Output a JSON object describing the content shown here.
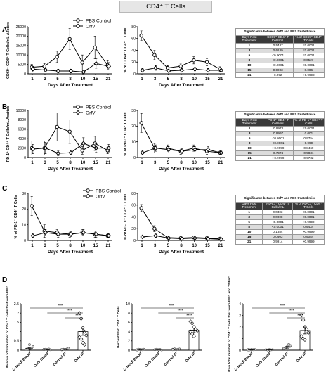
{
  "figure_title": "CD4⁺ T Cells",
  "panel_letters": [
    "A",
    "B",
    "C",
    "D"
  ],
  "legend": [
    "PBS Control",
    "OrfV"
  ],
  "chart_data": [
    {
      "type": "line",
      "panel": "A",
      "chart": "A1",
      "xlabel": "Days After Treatment",
      "ylabel": "CD69⁺ CD8⁺ T Cells/mL Ascites",
      "x": [
        "1",
        "3",
        "5",
        "8",
        "10",
        "15",
        "21"
      ],
      "ylim": [
        0,
        25000
      ],
      "yticks": [
        "0",
        "5000",
        "10000",
        "15000",
        "20000",
        "25000"
      ],
      "legend_position": "top-center",
      "series": [
        {
          "name": "PBS Control",
          "marker": "circle",
          "values": [
            3500,
            4000,
            9000,
            18500,
            6000,
            14000,
            4500
          ],
          "errors": [
            1500,
            1500,
            3000,
            5500,
            4000,
            6000,
            2500
          ]
        },
        {
          "name": "OrfV",
          "marker": "diamond",
          "values": [
            2500,
            2000,
            1500,
            1500,
            1000,
            5500,
            4000
          ],
          "errors": [
            1500,
            1000,
            1000,
            1000,
            800,
            2500,
            2000
          ]
        }
      ]
    },
    {
      "type": "line",
      "panel": "A",
      "chart": "A2",
      "xlabel": "Days After Treatment",
      "ylabel": "% of CD69⁺ CD4⁺ T Cells",
      "x": [
        "1",
        "3",
        "5",
        "8",
        "10",
        "15",
        "21"
      ],
      "ylim": [
        0,
        80
      ],
      "yticks": [
        "0",
        "20",
        "40",
        "60",
        "80"
      ],
      "series": [
        {
          "name": "PBS Control",
          "marker": "circle",
          "values": [
            65,
            32,
            10,
            13,
            23,
            20,
            8
          ],
          "errors": [
            8,
            8,
            4,
            5,
            6,
            6,
            4
          ]
        },
        {
          "name": "OrfV",
          "marker": "diamond",
          "values": [
            6,
            10,
            5,
            6,
            8,
            6,
            6
          ],
          "errors": [
            3,
            4,
            2,
            3,
            3,
            3,
            2
          ]
        }
      ]
    },
    {
      "type": "line",
      "panel": "B",
      "chart": "B1",
      "xlabel": "Days After Treatment",
      "ylabel": "PD-1⁺ CD4⁺ T Cells/mL Ascites",
      "x": [
        "1",
        "3",
        "5",
        "8",
        "10",
        "15",
        "21"
      ],
      "ylim": [
        0,
        10000
      ],
      "yticks": [
        "0",
        "2000",
        "4000",
        "6000",
        "8000",
        "10000"
      ],
      "legend_position": "top-center",
      "series": [
        {
          "name": "PBS Control",
          "marker": "circle",
          "values": [
            2000,
            2000,
            6500,
            5500,
            1500,
            3000,
            1500
          ],
          "errors": [
            1500,
            1500,
            3000,
            2500,
            800,
            1500,
            700
          ]
        },
        {
          "name": "OrfV",
          "marker": "diamond",
          "values": [
            1800,
            2000,
            900,
            1000,
            3000,
            2000,
            2000
          ],
          "errors": [
            1000,
            1200,
            500,
            500,
            1200,
            900,
            800
          ]
        }
      ]
    },
    {
      "type": "line",
      "panel": "B",
      "chart": "B2",
      "xlabel": "Days After Treatment",
      "ylabel": "% of PD-1⁺ CD4⁺ T Cells",
      "x": [
        "1",
        "3",
        "5",
        "8",
        "10",
        "15",
        "21"
      ],
      "ylim": [
        0,
        30
      ],
      "yticks": [
        "0",
        "10",
        "20",
        "30"
      ],
      "series": [
        {
          "name": "PBS Control",
          "marker": "circle",
          "values": [
            22,
            6,
            6,
            4,
            6,
            4,
            3
          ],
          "errors": [
            6,
            3,
            2,
            2,
            2,
            2,
            1.5
          ]
        },
        {
          "name": "OrfV",
          "marker": "diamond",
          "values": [
            3,
            6,
            5,
            4,
            5,
            5,
            3
          ],
          "errors": [
            1.5,
            2,
            2,
            1.5,
            2,
            2,
            1.5
          ]
        }
      ]
    },
    {
      "type": "line",
      "panel": "C",
      "chart": "C1",
      "xlabel": "Days After Treatment",
      "ylabel": "% of PD-1⁺ CD4⁺ T Cells",
      "x": [
        "1",
        "3",
        "5",
        "8",
        "10",
        "15",
        "21"
      ],
      "ylim": [
        0,
        30
      ],
      "yticks": [
        "0",
        "10",
        "20",
        "30"
      ],
      "legend_position": "top-right",
      "series": [
        {
          "name": "PBS Control",
          "marker": "circle",
          "values": [
            22,
            6,
            5,
            4,
            5,
            4,
            3
          ],
          "errors": [
            6,
            4,
            2,
            2,
            2,
            2,
            1.5
          ]
        },
        {
          "name": "OrfV",
          "marker": "diamond",
          "values": [
            3,
            5,
            4,
            4,
            5,
            4,
            3
          ],
          "errors": [
            1.5,
            2,
            2,
            1.5,
            2,
            2,
            1.5
          ]
        }
      ]
    },
    {
      "type": "line",
      "panel": "C",
      "chart": "C2",
      "xlabel": "Days After Treatment",
      "ylabel": "% of PD-L1⁺ CD4⁺ T Cells",
      "x": [
        "1",
        "3",
        "5",
        "8",
        "10",
        "15",
        "21"
      ],
      "ylim": [
        0,
        80
      ],
      "yticks": [
        "0",
        "20",
        "40",
        "60",
        "80"
      ],
      "series": [
        {
          "name": "PBS Control",
          "marker": "circle",
          "values": [
            55,
            20,
            5,
            4,
            5,
            4,
            3
          ],
          "errors": [
            6,
            5,
            2,
            2,
            2,
            2,
            1.5
          ]
        },
        {
          "name": "OrfV",
          "marker": "diamond",
          "values": [
            6,
            8,
            4,
            3,
            4,
            3,
            2
          ],
          "errors": [
            2,
            3,
            2,
            1.5,
            2,
            1.5,
            1
          ]
        }
      ]
    },
    {
      "type": "scatter",
      "panel": "D",
      "chart": "D1",
      "ylabel": "Relative total number of CD4⁺ T cells that were IFN⁺",
      "categories": [
        "Control Blood",
        "OrfV Blood",
        "Control IP",
        "OrfV IP"
      ],
      "ylim": [
        0,
        2.5
      ],
      "yticks": [
        "0",
        "0.5",
        "1",
        "1.5",
        "2",
        "2.5"
      ],
      "significance": [
        "****",
        "****",
        "****"
      ],
      "groups": [
        {
          "points": [
            0.05,
            0.1,
            0.08,
            0.12,
            0.2,
            0.05,
            0.03,
            0.3
          ],
          "mean": 0.08,
          "sem": 0.04
        },
        {
          "points": [
            0.03,
            0.05,
            0.04,
            0.06,
            0.02,
            0.05
          ],
          "mean": 0.04,
          "sem": 0.02
        },
        {
          "points": [
            0.02,
            0.05,
            0.03,
            0.06,
            0.1,
            0.04
          ],
          "mean": 0.05,
          "sem": 0.02
        },
        {
          "points": [
            2.0,
            1.7,
            1.2,
            1.0,
            0.8,
            0.7,
            0.6,
            0.4,
            0.3
          ],
          "mean": 1.0,
          "sem": 0.2
        }
      ]
    },
    {
      "type": "scatter",
      "panel": "D",
      "chart": "D2",
      "ylabel": "Percent IFN⁺ CD4⁺ T Cells",
      "categories": [
        "Control Blood",
        "OrfV Blood",
        "Control IP",
        "OrfV IP"
      ],
      "ylim": [
        0,
        10
      ],
      "yticks": [
        "0",
        "2",
        "4",
        "6",
        "8",
        "10"
      ],
      "significance": [
        "****",
        "****",
        "****"
      ],
      "groups": [
        {
          "points": [
            0.1,
            0.2,
            0.15,
            0.1,
            0.2,
            0.05
          ],
          "mean": 0.13,
          "sem": 0.04
        },
        {
          "points": [
            0.1,
            0.2,
            0.1,
            0.15,
            0.05,
            0.1
          ],
          "mean": 0.12,
          "sem": 0.03
        },
        {
          "points": [
            0.2,
            0.3,
            0.1,
            0.2,
            0.25,
            0.1
          ],
          "mean": 0.2,
          "sem": 0.04
        },
        {
          "points": [
            6.2,
            5.8,
            5.0,
            4.5,
            4.2,
            4.0,
            3.5,
            3.0
          ],
          "mean": 4.3,
          "sem": 0.5
        }
      ]
    },
    {
      "type": "scatter",
      "panel": "D",
      "chart": "D3",
      "ylabel": "Relative total number of CD4⁺ T cells that were IFN⁺ and TNFα⁺",
      "categories": [
        "Control Blood",
        "OrfV Blood",
        "Control IP",
        "OrfV IP"
      ],
      "ylim": [
        0,
        4
      ],
      "yticks": [
        "0",
        "1",
        "2",
        "3",
        "4"
      ],
      "significance": [
        "****",
        "****",
        "****"
      ],
      "groups": [
        {
          "points": [
            0.05,
            0.03,
            0.06,
            0.04,
            0.05,
            0.02
          ],
          "mean": 0.04,
          "sem": 0.01
        },
        {
          "points": [
            0.04,
            0.02,
            0.05,
            0.03,
            0.04
          ],
          "mean": 0.04,
          "sem": 0.01
        },
        {
          "points": [
            0.1,
            0.2,
            0.3,
            0.5,
            0.4,
            0.15
          ],
          "mean": 0.25,
          "sem": 0.08
        },
        {
          "points": [
            3.0,
            2.6,
            2.0,
            1.8,
            1.5,
            1.2,
            1.0,
            0.9
          ],
          "mean": 1.7,
          "sem": 0.3
        }
      ]
    }
  ],
  "tables": [
    {
      "title": "Significance between OrfV and PBS treated mice",
      "headers": [
        "Days Post Treatment",
        "CD69⁺ CD4⁺ T Cells/mL",
        "% of CD69⁺ CD4⁺ T Cells"
      ],
      "rows": [
        [
          "1",
          "0.5487",
          "<0.0001"
        ],
        [
          "3",
          "0.6189",
          "<0.0001"
        ],
        [
          "5",
          "<0.0001",
          "<0.0001"
        ],
        [
          "8",
          "<0.0001",
          "0.0527"
        ],
        [
          "10",
          "<0.0001",
          "<0.0001"
        ],
        [
          "15",
          "0.0003",
          "0.006"
        ],
        [
          "21",
          "0.992",
          ">0.9999"
        ]
      ]
    },
    {
      "title": "Significance between OrfV and PBS treated mice",
      "headers": [
        "Days Post Treatment",
        "PD-1⁺ CD4⁺ T Cells/mL",
        "% of PD-1⁺ CD4⁺ T Cells"
      ],
      "rows": [
        [
          "1",
          "0.9973",
          "<0.0001"
        ],
        [
          "3",
          "0.9997",
          "0.001"
        ],
        [
          "5",
          "<0.0001",
          "0.9754"
        ],
        [
          "8",
          "<0.0001",
          "0.999"
        ],
        [
          "10",
          ">0.9999",
          "0.8469"
        ],
        [
          "15",
          "0.7974",
          "0.5831"
        ],
        [
          "21",
          ">0.9999",
          "0.9732"
        ]
      ]
    },
    {
      "title": "Significance between OrfV and PBS treated mice",
      "headers": [
        "Days Post Treatment",
        "PD-L1⁺ CD4⁺ T Cells/mL",
        "% of PD-L1⁺ CD4⁺ T Cells"
      ],
      "rows": [
        [
          "1",
          "0.0403",
          "<0.0001"
        ],
        [
          "3",
          "0.0008",
          "<0.0001"
        ],
        [
          "5",
          "<0.0001",
          ">0.9999"
        ],
        [
          "8",
          "<0.0001",
          "0.9434"
        ],
        [
          "10",
          "0.1884",
          ">0.9999"
        ],
        [
          "15",
          "0.0603",
          "0.9054"
        ],
        [
          "21",
          "0.9914",
          ">0.9999"
        ]
      ]
    }
  ]
}
